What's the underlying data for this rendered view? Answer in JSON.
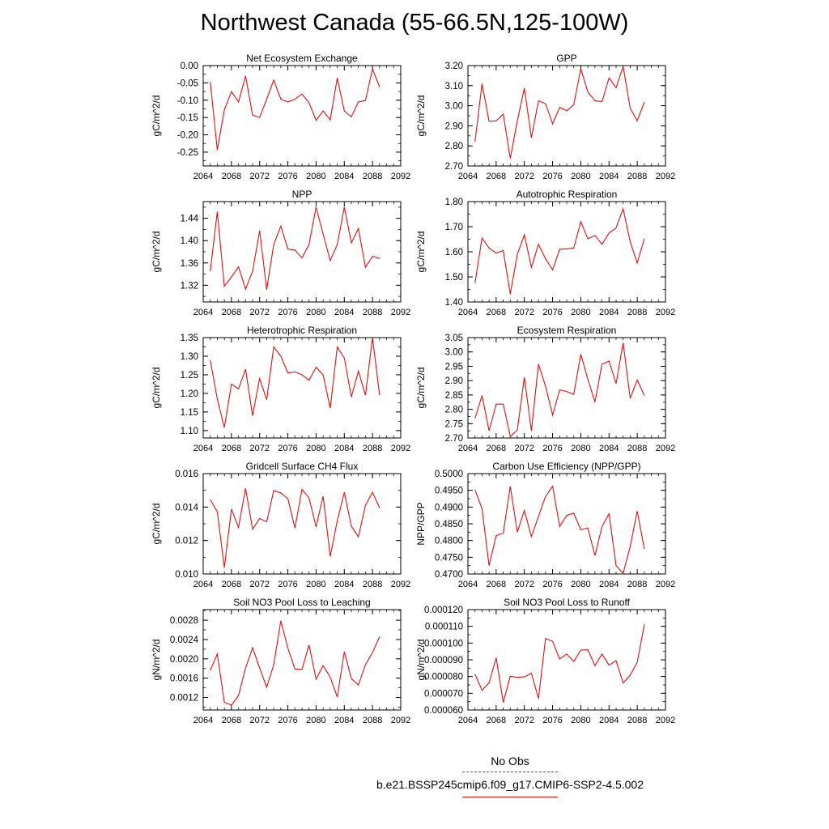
{
  "page": {
    "title": "Northwest Canada (55-66.5N,125-100W)"
  },
  "legend": {
    "obs_label": "No Obs",
    "obs_color": "#4a4ad8",
    "run_label": "b.e21.BSSP245cmip6.f09_g17.CMIP6-SSP2-4.5.002",
    "run_color": "#e01010"
  },
  "chart_data": [
    {
      "type": "line",
      "title": "Net Ecosystem Exchange",
      "ylabel": "gC/m^2/d",
      "xlim": [
        2064,
        2092
      ],
      "xticks": [
        2064,
        2068,
        2072,
        2076,
        2080,
        2084,
        2088,
        2092
      ],
      "ylim": [
        -0.29,
        0.0
      ],
      "yticks": [
        "0.00",
        "-0.05",
        "-0.10",
        "-0.15",
        "-0.20",
        "-0.25"
      ],
      "x": [
        2065,
        2066,
        2067,
        2068,
        2069,
        2070,
        2071,
        2072,
        2073,
        2074,
        2075,
        2076,
        2077,
        2078,
        2079,
        2080,
        2081,
        2082,
        2083,
        2084,
        2085,
        2086,
        2087,
        2088,
        2089
      ],
      "series": [
        {
          "values": [
            -0.047,
            -0.243,
            -0.128,
            -0.075,
            -0.105,
            -0.03,
            -0.143,
            -0.15,
            -0.097,
            -0.042,
            -0.097,
            -0.105,
            -0.097,
            -0.082,
            -0.107,
            -0.158,
            -0.131,
            -0.157,
            -0.036,
            -0.131,
            -0.148,
            -0.105,
            -0.101,
            -0.01,
            -0.062
          ]
        }
      ]
    },
    {
      "type": "line",
      "title": "GPP",
      "ylabel": "gC/m^2/d",
      "xlim": [
        2064,
        2092
      ],
      "xticks": [
        2064,
        2068,
        2072,
        2076,
        2080,
        2084,
        2088,
        2092
      ],
      "ylim": [
        2.7,
        3.2
      ],
      "yticks": [
        "3.20",
        "3.10",
        "3.00",
        "2.90",
        "2.80",
        "2.70"
      ],
      "x": [
        2065,
        2066,
        2067,
        2068,
        2069,
        2070,
        2071,
        2072,
        2073,
        2074,
        2075,
        2076,
        2077,
        2078,
        2079,
        2080,
        2081,
        2082,
        2083,
        2084,
        2085,
        2086,
        2087,
        2088,
        2089
      ],
      "series": [
        {
          "values": [
            2.82,
            3.11,
            2.922,
            2.925,
            2.958,
            2.738,
            2.925,
            3.088,
            2.84,
            3.025,
            3.01,
            2.91,
            2.992,
            2.975,
            3.005,
            3.185,
            3.068,
            3.025,
            3.02,
            3.138,
            3.09,
            3.195,
            2.988,
            2.925,
            3.018
          ]
        }
      ]
    },
    {
      "type": "line",
      "title": "NPP",
      "ylabel": "gC/m^2/d",
      "xlim": [
        2064,
        2092
      ],
      "xticks": [
        2064,
        2068,
        2072,
        2076,
        2080,
        2084,
        2088,
        2092
      ],
      "ylim": [
        1.29,
        1.47
      ],
      "yticks": [
        "1.44",
        "1.40",
        "1.36",
        "1.32"
      ],
      "x": [
        2065,
        2066,
        2067,
        2068,
        2069,
        2070,
        2071,
        2072,
        2073,
        2074,
        2075,
        2076,
        2077,
        2078,
        2079,
        2080,
        2081,
        2082,
        2083,
        2084,
        2085,
        2086,
        2087,
        2088,
        2089
      ],
      "series": [
        {
          "values": [
            1.345,
            1.452,
            1.318,
            1.335,
            1.353,
            1.313,
            1.345,
            1.418,
            1.312,
            1.393,
            1.426,
            1.385,
            1.383,
            1.369,
            1.393,
            1.46,
            1.412,
            1.364,
            1.393,
            1.46,
            1.396,
            1.422,
            1.352,
            1.372,
            1.368
          ]
        }
      ]
    },
    {
      "type": "line",
      "title": "Autotrophic Respiration",
      "ylabel": "gC/m^2/d",
      "xlim": [
        2064,
        2092
      ],
      "xticks": [
        2064,
        2068,
        2072,
        2076,
        2080,
        2084,
        2088,
        2092
      ],
      "ylim": [
        1.4,
        1.8
      ],
      "yticks": [
        "1.80",
        "1.70",
        "1.60",
        "1.50",
        "1.40"
      ],
      "x": [
        2065,
        2066,
        2067,
        2068,
        2069,
        2070,
        2071,
        2072,
        2073,
        2074,
        2075,
        2076,
        2077,
        2078,
        2079,
        2080,
        2081,
        2082,
        2083,
        2084,
        2085,
        2086,
        2087,
        2088,
        2089
      ],
      "series": [
        {
          "values": [
            1.475,
            1.655,
            1.615,
            1.595,
            1.605,
            1.432,
            1.59,
            1.668,
            1.538,
            1.63,
            1.572,
            1.528,
            1.61,
            1.612,
            1.615,
            1.72,
            1.652,
            1.665,
            1.63,
            1.675,
            1.695,
            1.772,
            1.64,
            1.555,
            1.652
          ]
        }
      ]
    },
    {
      "type": "line",
      "title": "Heterotrophic Respiration",
      "ylabel": "gC/m^2/d",
      "xlim": [
        2064,
        2092
      ],
      "xticks": [
        2064,
        2068,
        2072,
        2076,
        2080,
        2084,
        2088,
        2092
      ],
      "ylim": [
        1.08,
        1.35
      ],
      "yticks": [
        "1.35",
        "1.30",
        "1.25",
        "1.20",
        "1.15",
        "1.10"
      ],
      "x": [
        2065,
        2066,
        2067,
        2068,
        2069,
        2070,
        2071,
        2072,
        2073,
        2074,
        2075,
        2076,
        2077,
        2078,
        2079,
        2080,
        2081,
        2082,
        2083,
        2084,
        2085,
        2086,
        2087,
        2088,
        2089
      ],
      "series": [
        {
          "values": [
            1.29,
            1.185,
            1.108,
            1.225,
            1.212,
            1.265,
            1.14,
            1.24,
            1.183,
            1.325,
            1.3,
            1.255,
            1.258,
            1.25,
            1.235,
            1.27,
            1.25,
            1.16,
            1.325,
            1.295,
            1.19,
            1.26,
            1.195,
            1.35,
            1.195
          ]
        }
      ]
    },
    {
      "type": "line",
      "title": "Ecosystem Respiration",
      "ylabel": "gC/m^2/d",
      "xlim": [
        2064,
        2092
      ],
      "xticks": [
        2064,
        2068,
        2072,
        2076,
        2080,
        2084,
        2088,
        2092
      ],
      "ylim": [
        2.7,
        3.05
      ],
      "yticks": [
        "3.05",
        "3.00",
        "2.95",
        "2.90",
        "2.85",
        "2.80",
        "2.75",
        "2.70"
      ],
      "x": [
        2065,
        2066,
        2067,
        2068,
        2069,
        2070,
        2071,
        2072,
        2073,
        2074,
        2075,
        2076,
        2077,
        2078,
        2079,
        2080,
        2081,
        2082,
        2083,
        2084,
        2085,
        2086,
        2087,
        2088,
        2089
      ],
      "series": [
        {
          "values": [
            2.768,
            2.848,
            2.725,
            2.818,
            2.818,
            2.705,
            2.728,
            2.912,
            2.725,
            2.958,
            2.88,
            2.78,
            2.868,
            2.862,
            2.852,
            2.992,
            2.905,
            2.825,
            2.958,
            2.968,
            2.89,
            3.032,
            2.838,
            2.902,
            2.848
          ]
        }
      ]
    },
    {
      "type": "line",
      "title": "Gridcell Surface CH4 Flux",
      "ylabel": "gC/m^2/d",
      "xlim": [
        2064,
        2092
      ],
      "xticks": [
        2064,
        2068,
        2072,
        2076,
        2080,
        2084,
        2088,
        2092
      ],
      "ylim": [
        0.01,
        0.016
      ],
      "yticks": [
        "0.016",
        "0.014",
        "0.012",
        "0.010"
      ],
      "x": [
        2065,
        2066,
        2067,
        2068,
        2069,
        2070,
        2071,
        2072,
        2073,
        2074,
        2075,
        2076,
        2077,
        2078,
        2079,
        2080,
        2081,
        2082,
        2083,
        2084,
        2085,
        2086,
        2087,
        2088,
        2089
      ],
      "series": [
        {
          "values": [
            0.01445,
            0.01372,
            0.01038,
            0.01388,
            0.01278,
            0.01512,
            0.01268,
            0.01332,
            0.01312,
            0.01498,
            0.01485,
            0.0145,
            0.01275,
            0.01505,
            0.01455,
            0.01282,
            0.01465,
            0.01105,
            0.01318,
            0.01488,
            0.01285,
            0.01222,
            0.0141,
            0.01488,
            0.01395
          ]
        }
      ]
    },
    {
      "type": "line",
      "title": "Carbon Use Efficiency (NPP/GPP)",
      "ylabel": "NPP/GPP",
      "xlim": [
        2064,
        2092
      ],
      "xticks": [
        2064,
        2068,
        2072,
        2076,
        2080,
        2084,
        2088,
        2092
      ],
      "ylim": [
        0.47,
        0.5
      ],
      "yticks": [
        "0.5000",
        "0.4950",
        "0.4900",
        "0.4850",
        "0.4800",
        "0.4750",
        "0.4700"
      ],
      "x": [
        2065,
        2066,
        2067,
        2068,
        2069,
        2070,
        2071,
        2072,
        2073,
        2074,
        2075,
        2076,
        2077,
        2078,
        2079,
        2080,
        2081,
        2082,
        2083,
        2084,
        2085,
        2086,
        2087,
        2088,
        2089
      ],
      "series": [
        {
          "values": [
            0.4952,
            0.4895,
            0.4725,
            0.4815,
            0.4822,
            0.4962,
            0.4825,
            0.489,
            0.4812,
            0.4872,
            0.4932,
            0.4962,
            0.4842,
            0.4875,
            0.4882,
            0.4832,
            0.4838,
            0.4755,
            0.4842,
            0.488,
            0.4725,
            0.4702,
            0.4782,
            0.4888,
            0.4775
          ]
        }
      ]
    },
    {
      "type": "line",
      "title": "Soil NO3 Pool Loss to Leaching",
      "ylabel": "gN/m^2/d",
      "xlim": [
        2064,
        2092
      ],
      "xticks": [
        2064,
        2068,
        2072,
        2076,
        2080,
        2084,
        2088,
        2092
      ],
      "ylim": [
        0.00094,
        0.00302
      ],
      "yticks": [
        "0.0028",
        "0.0024",
        "0.0020",
        "0.0016",
        "0.0012"
      ],
      "x": [
        2065,
        2066,
        2067,
        2068,
        2069,
        2070,
        2071,
        2072,
        2073,
        2074,
        2075,
        2076,
        2077,
        2078,
        2079,
        2080,
        2081,
        2082,
        2083,
        2084,
        2085,
        2086,
        2087,
        2088,
        2089
      ],
      "series": [
        {
          "values": [
            0.00176,
            0.0021,
            0.0011,
            0.00104,
            0.00124,
            0.00181,
            0.00223,
            0.00181,
            0.00141,
            0.00188,
            0.00279,
            0.00222,
            0.00179,
            0.00178,
            0.00229,
            0.00158,
            0.00186,
            0.00162,
            0.00121,
            0.00215,
            0.00159,
            0.00146,
            0.00188,
            0.00213,
            0.00246
          ]
        }
      ]
    },
    {
      "type": "line",
      "title": "Soil NO3 Pool Loss to Runoff",
      "ylabel": "gN/m^2/d",
      "xlim": [
        2064,
        2092
      ],
      "xticks": [
        2064,
        2068,
        2072,
        2076,
        2080,
        2084,
        2088,
        2092
      ],
      "ylim": [
        6e-05,
        0.00012
      ],
      "yticks": [
        "0.000120",
        "0.000110",
        "0.000100",
        "0.000090",
        "0.000080",
        "0.000070",
        "0.000060"
      ],
      "x": [
        2065,
        2066,
        2067,
        2068,
        2069,
        2070,
        2071,
        2072,
        2073,
        2074,
        2075,
        2076,
        2077,
        2078,
        2079,
        2080,
        2081,
        2082,
        2083,
        2084,
        2085,
        2086,
        2087,
        2088,
        2089
      ],
      "series": [
        {
          "values": [
            8.15e-05,
            7.18e-05,
            7.62e-05,
            9.12e-05,
            6.45e-05,
            8.02e-05,
            7.95e-05,
            7.98e-05,
            8.2e-05,
            6.68e-05,
            0.0001028,
            0.000101,
            9.05e-05,
            9.35e-05,
            8.9e-05,
            9.58e-05,
            9.6e-05,
            8.65e-05,
            9.35e-05,
            8.68e-05,
            8.95e-05,
            7.62e-05,
            8.08e-05,
            8.85e-05,
            0.0001112
          ]
        }
      ]
    }
  ]
}
